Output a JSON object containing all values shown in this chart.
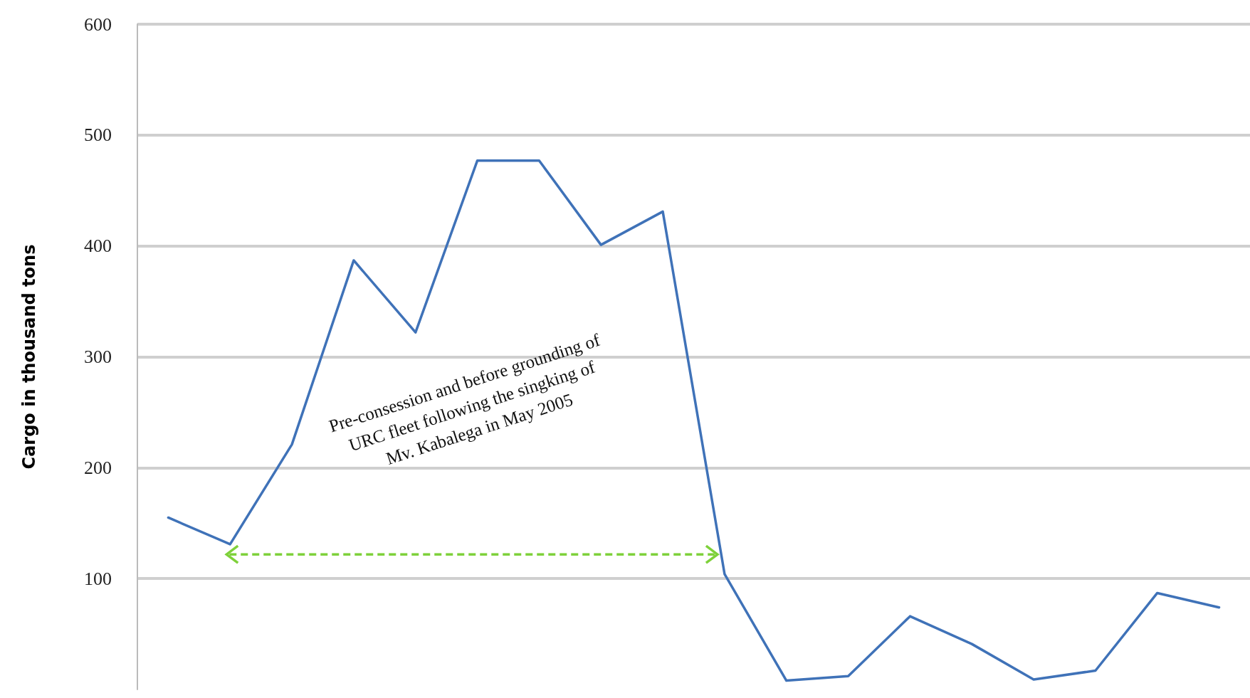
{
  "chart_data": {
    "type": "line",
    "ylabel": "Cargo in thousand tons",
    "categories": [
      null,
      null,
      null,
      null,
      null,
      null,
      null,
      null,
      null,
      null,
      null,
      null,
      null,
      null,
      null,
      null,
      null,
      null
    ],
    "series": [
      {
        "color": "#3f72b8",
        "values": [
          155,
          131,
          221,
          387,
          322,
          477,
          477,
          401,
          431,
          104,
          8,
          12,
          66,
          41,
          9,
          17,
          87,
          74
        ]
      }
    ],
    "ylim": [
      0,
      600
    ],
    "yticks": [
      100,
      200,
      300,
      400,
      500,
      600
    ],
    "grid": "y",
    "tick_labels": "y",
    "marker": "none",
    "line_style": "solid",
    "annotations": [
      "Pre-consession and before grounding of URC fleet following the singking of Mv. Kabalega in May 2005"
    ]
  }
}
